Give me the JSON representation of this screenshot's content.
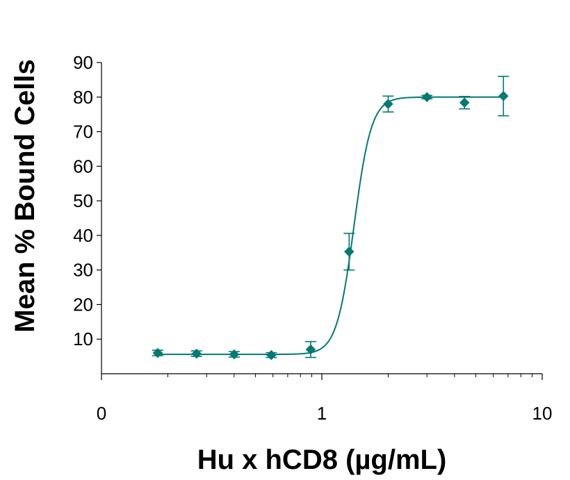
{
  "chart_data": {
    "type": "scatter",
    "xlabel": "Hu x hCD8 (µg/mL)",
    "ylabel": "Mean % Bound Cells",
    "x_scale": "log",
    "xlim": [
      0.1,
      10
    ],
    "ylim": [
      0,
      90
    ],
    "x_tick_labels": [
      {
        "value": 0.1,
        "label": "0"
      },
      {
        "value": 1,
        "label": "1"
      },
      {
        "value": 10,
        "label": "10"
      }
    ],
    "y_ticks": [
      10,
      20,
      30,
      40,
      50,
      60,
      70,
      80,
      90
    ],
    "grid": false,
    "legend": "none",
    "series": [
      {
        "points": [
          {
            "x": 0.18,
            "y": 6.0,
            "err": 0.8
          },
          {
            "x": 0.27,
            "y": 5.8,
            "err": 0.8
          },
          {
            "x": 0.4,
            "y": 5.6,
            "err": 0.8
          },
          {
            "x": 0.59,
            "y": 5.4,
            "err": 0.7
          },
          {
            "x": 0.89,
            "y": 7.0,
            "err": 2.3
          },
          {
            "x": 1.33,
            "y": 35.3,
            "err": 5.3
          },
          {
            "x": 2.0,
            "y": 78.0,
            "err": 2.3
          },
          {
            "x": 3.0,
            "y": 80.0,
            "err": 0.5
          },
          {
            "x": 4.44,
            "y": 78.4,
            "err": 1.8
          },
          {
            "x": 6.67,
            "y": 80.3,
            "err": 5.7
          }
        ],
        "fit": {
          "model": "4PL",
          "bottom": 5.6,
          "top": 80.0,
          "ec50": 1.4,
          "hill": 11
        }
      }
    ],
    "colors": {
      "series": "#007a73",
      "axis": "#000000"
    },
    "marker": "diamond"
  }
}
